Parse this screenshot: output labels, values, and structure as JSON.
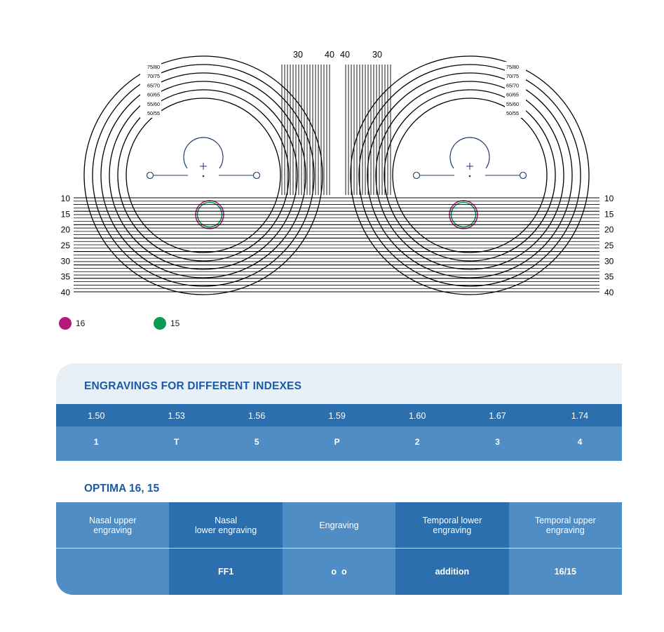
{
  "diagram": {
    "ring_labels": [
      "75/80",
      "70/75",
      "65/70",
      "60/65",
      "55/60",
      "50/55"
    ],
    "left_row_labels": [
      "10",
      "15",
      "20",
      "25",
      "30",
      "35",
      "40"
    ],
    "right_row_labels": [
      "10",
      "15",
      "20",
      "25",
      "30",
      "35",
      "40"
    ],
    "left_column_labels": [
      "30",
      "40"
    ],
    "right_column_labels": [
      "40",
      "30"
    ],
    "colors": {
      "line": "#000000",
      "marker_16": "#b0197e",
      "marker_15": "#0a9a50"
    }
  },
  "legend": [
    {
      "label": "16",
      "color": "#b0197e"
    },
    {
      "label": "15",
      "color": "#0a9a50"
    }
  ],
  "engravings": {
    "title": "ENGRAVINGS FOR DIFFERENT INDEXES",
    "indexes": [
      "1.50",
      "1.53",
      "1.56",
      "1.59",
      "1.60",
      "1.67",
      "1.74"
    ],
    "codes": [
      "1",
      "T",
      "5",
      "P",
      "2",
      "3",
      "4"
    ]
  },
  "optima": {
    "title": "OPTIMA 16, 15",
    "columns": [
      {
        "header": "Nasal upper\nengraving",
        "value": ""
      },
      {
        "header": "Nasal\nlower engraving",
        "value": "FF1"
      },
      {
        "header": "Engraving",
        "value": "o  o"
      },
      {
        "header": "Temporal lower\nengraving",
        "value": "addition"
      },
      {
        "header": "Temporal upper\nengraving",
        "value": "16/15"
      }
    ]
  },
  "colors": {
    "title_blue": "#1b5aa6",
    "header_bg": "#e8eff5",
    "dark_blue": "#2b6fae",
    "light_blue": "#4f8dc4"
  }
}
